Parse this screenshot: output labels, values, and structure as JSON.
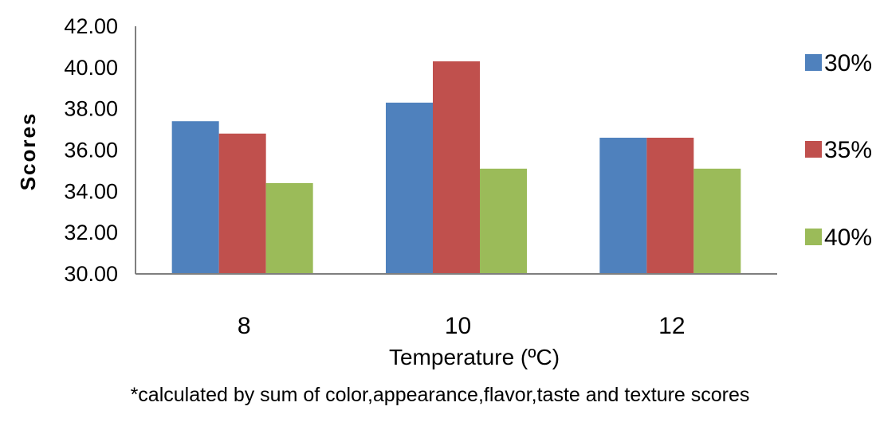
{
  "chart_data": {
    "type": "bar",
    "title": "",
    "xlabel": "Temperature (ºC)",
    "ylabel": "Scores",
    "categories": [
      "8",
      "10",
      "12"
    ],
    "series": [
      {
        "name": "30%",
        "color": "#4F81BD",
        "values": [
          37.4,
          38.3,
          36.6
        ]
      },
      {
        "name": "35%",
        "color": "#C0504D",
        "values": [
          36.8,
          40.3,
          36.6
        ]
      },
      {
        "name": "40%",
        "color": "#9BBB59",
        "values": [
          34.4,
          35.1,
          35.1
        ]
      }
    ],
    "ylim": [
      30,
      42
    ],
    "yticks": [
      "30.00",
      "32.00",
      "34.00",
      "36.00",
      "38.00",
      "40.00",
      "42.00"
    ],
    "grid": false,
    "legend_position": "right",
    "footnote": "*calculated by sum of color,appearance,flavor,taste and texture scores"
  }
}
